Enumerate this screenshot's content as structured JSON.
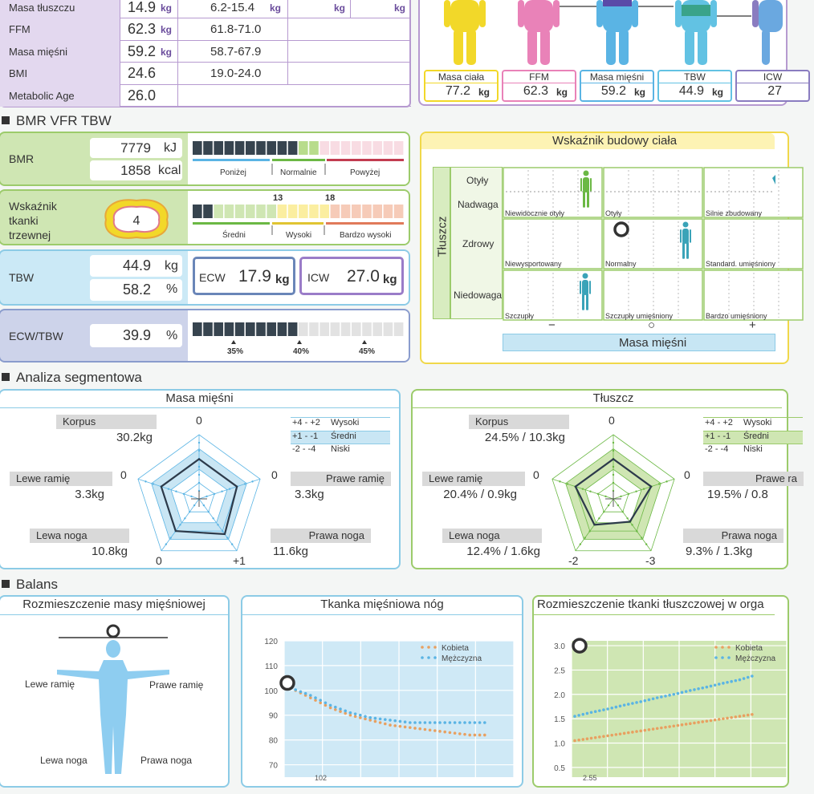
{
  "top_table": {
    "rows": [
      {
        "label": "Masa tłuszczu",
        "value": "14.9",
        "unit": "kg",
        "range": "6.2-15.4",
        "range_unit": "kg",
        "c3": "kg",
        "c4": "kg"
      },
      {
        "label": "FFM",
        "value": "62.3",
        "unit": "kg",
        "range": "61.8-71.0"
      },
      {
        "label": "Masa mięśni",
        "value": "59.2",
        "unit": "kg",
        "range": "58.7-67.9"
      },
      {
        "label": "BMI",
        "value": "24.6",
        "unit": "",
        "range": "19.0-24.0"
      },
      {
        "label": "Metabolic Age",
        "value": "26.0",
        "unit": "",
        "range": ""
      }
    ]
  },
  "body_composition": {
    "items": [
      {
        "label": "Masa ciała",
        "value": "77.2",
        "unit": "kg",
        "color": "#f2d829"
      },
      {
        "label": "FFM",
        "value": "62.3",
        "unit": "kg",
        "color": "#e982b8"
      },
      {
        "label": "Masa mięśni",
        "value": "59.2",
        "unit": "kg",
        "color": "#5ab4e4"
      },
      {
        "label": "TBW",
        "value": "44.9",
        "unit": "kg",
        "color": "#62c2e3"
      },
      {
        "label": "ICW",
        "value": "27",
        "unit": "",
        "color": "#8a7cc0"
      }
    ]
  },
  "bmr_section": {
    "title": "BMR VFR TBW",
    "bmr": {
      "label": "BMR",
      "kj": "7779",
      "kj_unit": "kJ",
      "kcal": "1858",
      "kcal_unit": "kcal",
      "scale": [
        "Poniżej",
        "Normalnie",
        "Powyżej"
      ]
    },
    "vfr": {
      "label": "Wskaźnik tkanki trzewnej",
      "value": "4",
      "marks": [
        "13",
        "18"
      ],
      "scale": [
        "Średni",
        "Wysoki",
        "Bardzo wysoki"
      ]
    },
    "tbw": {
      "label": "TBW",
      "kg": "44.9",
      "kg_unit": "kg",
      "pct": "58.2",
      "pct_unit": "%",
      "ecw_label": "ECW",
      "ecw": "17.9",
      "ecw_unit": "kg",
      "icw_label": "ICW",
      "icw": "27.0",
      "icw_unit": "kg"
    },
    "ecw_tbw": {
      "label": "ECW/TBW",
      "value": "39.9",
      "unit": "%",
      "ticks": [
        "35%",
        "40%",
        "45%"
      ]
    }
  },
  "body_type": {
    "title": "Wskaźnik budowy ciała",
    "y_axis": "Tłuszcz",
    "x_axis": "Masa mięśni",
    "rows": [
      "Otyły",
      "Nadwaga",
      "Zdrowy",
      "Niedowaga"
    ],
    "x_marks": [
      "−",
      "○",
      "+"
    ],
    "cells": [
      [
        "Niewidocznie otyły",
        "Otyły",
        "Silnie zbudowany"
      ],
      [
        "Niewysportowany",
        "Normalny",
        "Standard. umięśniony"
      ],
      [
        "Szczupły",
        "Szczupły umięśniony",
        "Bardzo umięśniony"
      ]
    ]
  },
  "segment": {
    "title": "Analiza segmentowa",
    "muscle": {
      "title": "Masa mięśni",
      "korpus": "Korpus",
      "korpus_val": "30.2kg",
      "lewe_ramie": "Lewe ramię",
      "lewe_ramie_val": "3.3kg",
      "prawe_ramie": "Prawe ramię",
      "prawe_ramie_val": "3.3kg",
      "lewa_noga": "Lewa noga",
      "lewa_noga_val": "10.8kg",
      "prawa_noga": "Prawa noga",
      "prawa_noga_val": "11.6kg",
      "axis": [
        "0",
        "0",
        "0",
        "0",
        "+1"
      ],
      "legend": [
        [
          "+4 - +2",
          "Wysoki"
        ],
        [
          "+1 - -1",
          "Średni"
        ],
        [
          "-2 - -4",
          "Niski"
        ]
      ],
      "values": [
        0,
        0,
        0,
        0,
        1
      ]
    },
    "fat": {
      "title": "Tłuszcz",
      "korpus": "Korpus",
      "korpus_val": "24.5% / 10.3kg",
      "lewe_ramie": "Lewe ramię",
      "lewe_ramie_val": "20.4% / 0.9kg",
      "prawe_ramie": "Prawe ra",
      "prawe_ramie_val": "19.5% / 0.8",
      "lewa_noga": "Lewa noga",
      "lewa_noga_val": "12.4% / 1.6kg",
      "prawa_noga": "Prawa noga",
      "prawa_noga_val": "9.3% / 1.3kg",
      "axis": [
        "0",
        "0",
        "0",
        "-2",
        "-3"
      ],
      "legend": [
        [
          "+4 - +2",
          "Wysoki"
        ],
        [
          "+1 - -1",
          "Średni"
        ],
        [
          "-2 - -4",
          "Niski"
        ]
      ],
      "values": [
        0,
        0,
        0,
        -2,
        -3
      ]
    }
  },
  "balance": {
    "title": "Balans",
    "muscle_dist": {
      "title": "Rozmieszczenie masy mięśniowej",
      "lewe_ramie": "Lewe ramię",
      "prawe_ramie": "Prawe ramię",
      "lewa_noga": "Lewa noga",
      "prawa_noga": "Prawa noga"
    },
    "leg_muscle": {
      "title": "Tkanka mięśniowa nóg",
      "legend": [
        "Kobieta",
        "Mężczyzna"
      ],
      "y_ticks": [
        "120",
        "110",
        "100",
        "90",
        "80",
        "70"
      ],
      "partial_tick": "102"
    },
    "fat_dist": {
      "title": "Rozmieszczenie tkanki tłuszczowej w orga",
      "legend": [
        "Kobieta",
        "Mężczyzna"
      ],
      "y_ticks": [
        "3.0",
        "2.5",
        "2.0",
        "1.5",
        "1.0",
        "0.5"
      ],
      "partial_tick": "2.55"
    }
  },
  "chart_data": [
    {
      "type": "line",
      "title": "Tkanka mięśniowa nóg",
      "ylim": [
        65,
        120
      ],
      "series": [
        {
          "name": "Kobieta",
          "color": "#e8a060",
          "values": [
            101,
            97,
            93,
            90,
            88,
            86,
            85,
            84,
            83,
            82,
            82
          ]
        },
        {
          "name": "Mężczyzna",
          "color": "#5ab4e4",
          "values": [
            101,
            98,
            94,
            91,
            89,
            88,
            87,
            87,
            87,
            87,
            87
          ]
        }
      ],
      "marker_value": 103
    },
    {
      "type": "line",
      "title": "Rozmieszczenie tkanki tłuszczowej w orga",
      "ylim": [
        0.3,
        3.1
      ],
      "series": [
        {
          "name": "Kobieta",
          "color": "#e8a060",
          "values": [
            1.05,
            1.1,
            1.15,
            1.2,
            1.25,
            1.3,
            1.35,
            1.4,
            1.45,
            1.5,
            1.55,
            1.6
          ]
        },
        {
          "name": "Mężczyzna",
          "color": "#5ab4e4",
          "values": [
            1.55,
            1.63,
            1.7,
            1.78,
            1.85,
            1.93,
            2.0,
            2.08,
            2.15,
            2.23,
            2.3,
            2.4
          ]
        }
      ],
      "marker_value": 3.0
    }
  ]
}
